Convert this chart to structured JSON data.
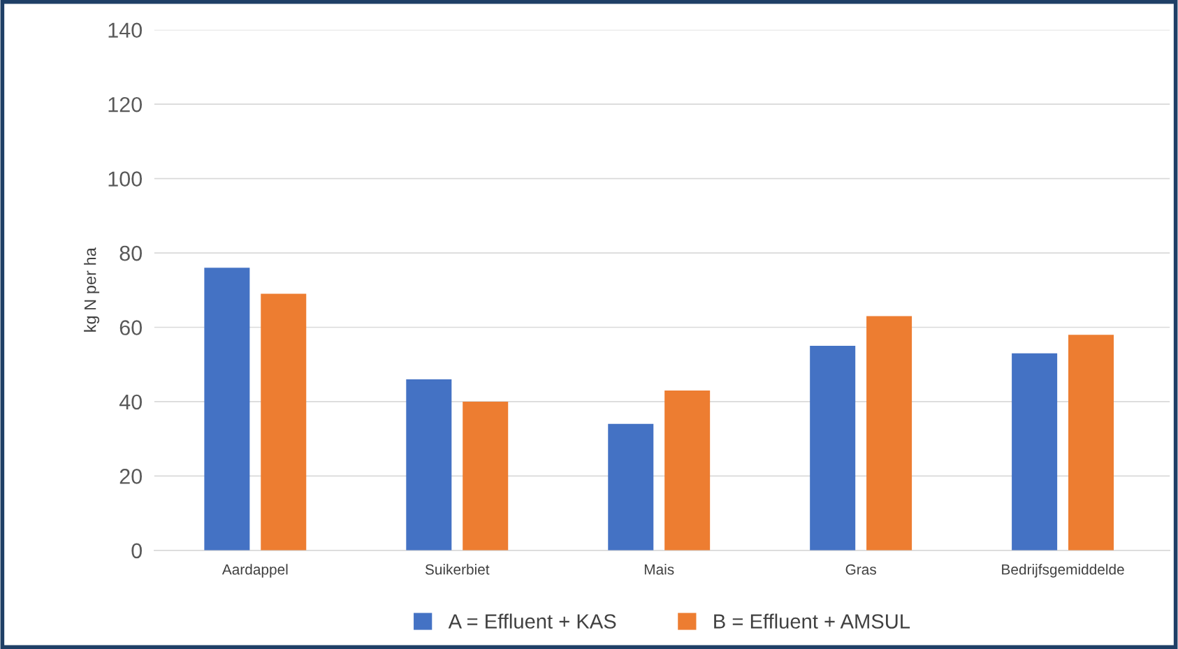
{
  "chart_data": {
    "type": "bar",
    "ylabel": "kg N per ha",
    "categories": [
      "Aardappel",
      "Suikerbiet",
      "Mais",
      "Gras",
      "Bedrijfsgemiddelde"
    ],
    "series": [
      {
        "name": "A = Effluent + KAS",
        "color": "#4472c4",
        "values": [
          76,
          46,
          34,
          55,
          53
        ]
      },
      {
        "name": "B = Effluent + AMSUL",
        "color": "#ed7d31",
        "values": [
          69,
          40,
          43,
          63,
          58
        ]
      }
    ],
    "ylim": [
      0,
      140
    ],
    "yticks": [
      0,
      20,
      40,
      60,
      80,
      100,
      120,
      140
    ],
    "grid": "y",
    "legend": "bottom"
  }
}
